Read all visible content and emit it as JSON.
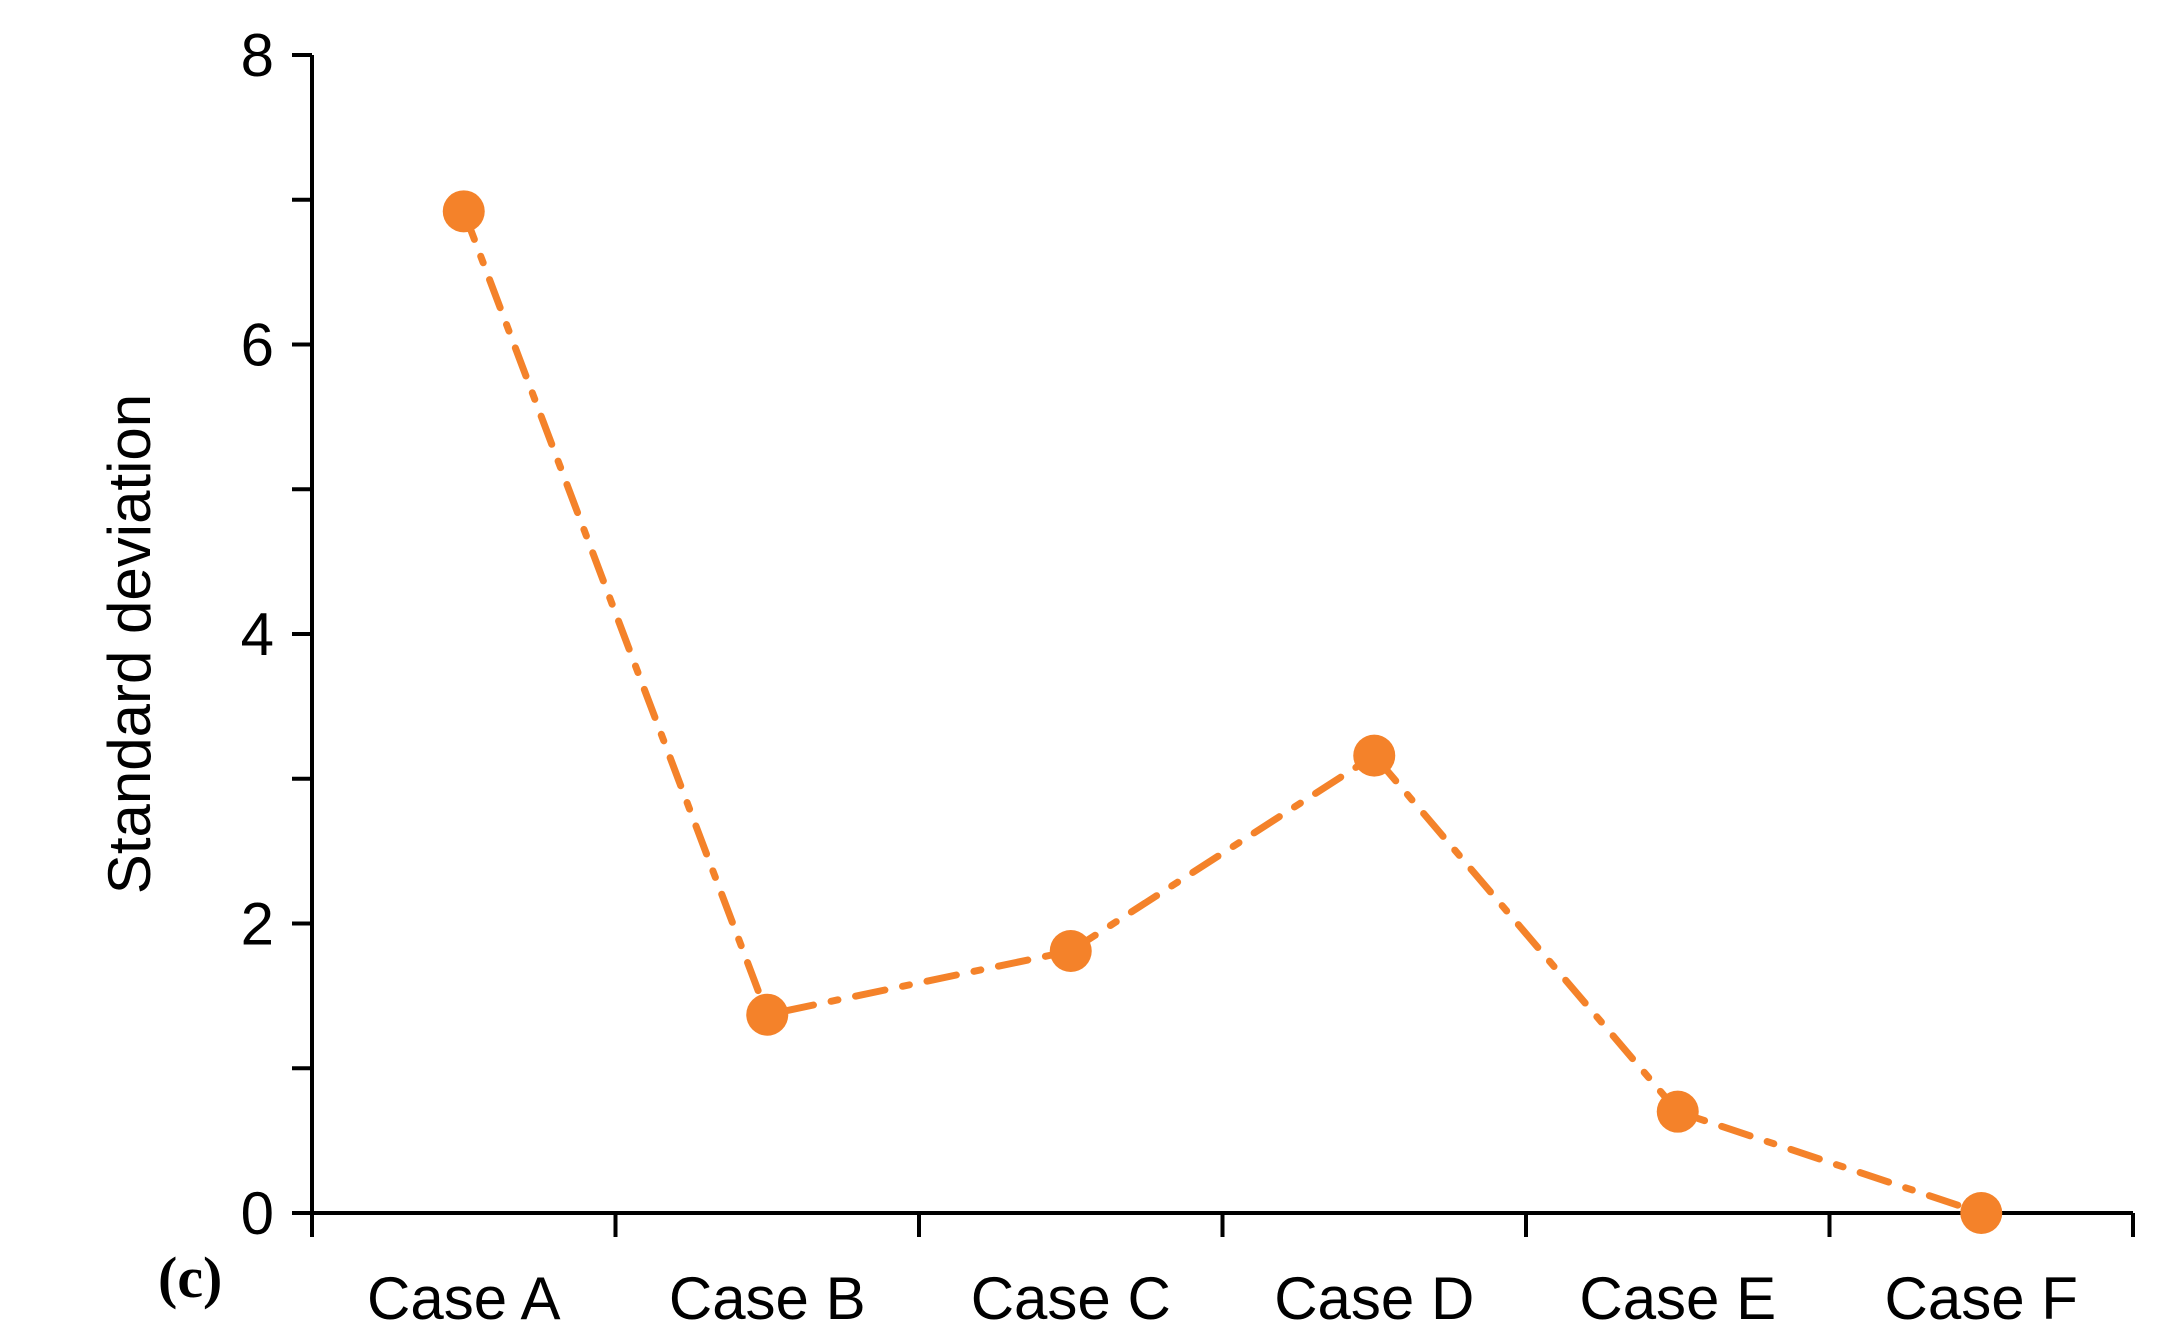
{
  "chart_data": {
    "type": "line",
    "panel_label": "(c)",
    "title": "",
    "xlabel": "",
    "ylabel": "Standard deviation",
    "categories": [
      "Case A",
      "Case B",
      "Case C",
      "Case D",
      "Case E",
      "Case F"
    ],
    "series": [
      {
        "values": [
          6.92,
          1.37,
          1.81,
          3.16,
          0.7,
          0.0
        ],
        "color": "#F4822A",
        "line_style": "dash-dot",
        "marker": "circle"
      }
    ],
    "ylim": [
      0,
      8
    ],
    "yticks": [
      0,
      2,
      4,
      6,
      8
    ],
    "grid": false,
    "legend": "none"
  }
}
